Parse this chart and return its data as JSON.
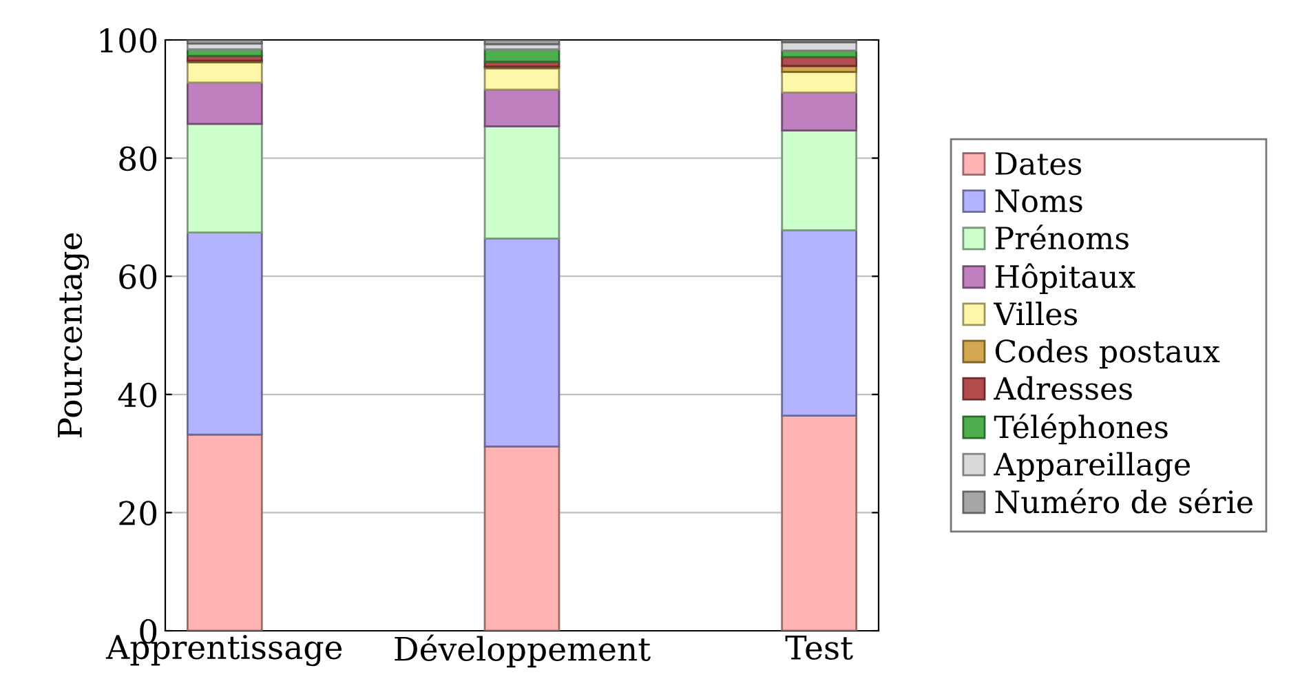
{
  "chart_data": {
    "type": "bar",
    "stacked": true,
    "ylabel": "Pourcentage",
    "categories": [
      "Apprentissage",
      "Développement",
      "Test"
    ],
    "series": [
      {
        "name": "Dates",
        "color": "#ffb3b3",
        "values": [
          33.2,
          31.2,
          36.4
        ]
      },
      {
        "name": "Noms",
        "color": "#b3b3ff",
        "values": [
          34.2,
          35.2,
          31.4
        ]
      },
      {
        "name": "Prénoms",
        "color": "#ccffcc",
        "values": [
          18.4,
          19.0,
          16.9
        ]
      },
      {
        "name": "Hôpitaux",
        "color": "#bf80bf",
        "values": [
          7.0,
          6.2,
          6.4
        ]
      },
      {
        "name": "Villes",
        "color": "#fff7a8",
        "values": [
          3.4,
          3.6,
          3.5
        ]
      },
      {
        "name": "Codes postaux",
        "color": "#d4a64f",
        "values": [
          0.3,
          0.3,
          1.0
        ]
      },
      {
        "name": "Adresses",
        "color": "#b34d4d",
        "values": [
          0.8,
          0.8,
          1.5
        ]
      },
      {
        "name": "Téléphones",
        "color": "#4daf4d",
        "values": [
          1.1,
          2.1,
          1.1
        ]
      },
      {
        "name": "Appareillage",
        "color": "#d9d9d9",
        "values": [
          1.0,
          0.9,
          1.4
        ]
      },
      {
        "name": "Numéro de série",
        "color": "#a6a6a6",
        "values": [
          0.6,
          0.7,
          0.4
        ]
      }
    ],
    "ylim": [
      0,
      100
    ],
    "yticks": [
      0,
      20,
      40,
      60,
      80,
      100
    ],
    "grid": "y",
    "legend": "right"
  }
}
